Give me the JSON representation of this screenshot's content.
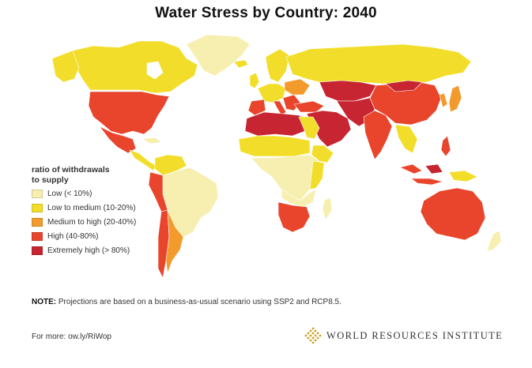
{
  "title": "Water Stress by Country: 2040",
  "legend": {
    "title_line1": "ratio of withdrawals",
    "title_line2": "to supply",
    "items": [
      {
        "label": "Low (< 10%)",
        "color": "#f6efb0"
      },
      {
        "label": "Low to medium (10-20%)",
        "color": "#f2de2a"
      },
      {
        "label": "Medium to high  (20-40%)",
        "color": "#f29b2c"
      },
      {
        "label": "High (40-80%)",
        "color": "#e8452c"
      },
      {
        "label": "Extremely high (> 80%)",
        "color": "#c62531"
      }
    ]
  },
  "colors": {
    "low": "#f6efb0",
    "low_medium": "#f2de2a",
    "medium_high": "#f29b2c",
    "high": "#e8452c",
    "extremely_high": "#c62531",
    "no_data": "#f8f4d2"
  },
  "note": {
    "label": "NOTE:",
    "text": "Projections are based on a business-as-usual scenario using SSP2 and RCP8.5."
  },
  "more": "For more: ow.ly/RiWop",
  "organization": "WORLD RESOURCES INSTITUTE",
  "organization_logo_icon": "wri-diamond-logo-icon"
}
